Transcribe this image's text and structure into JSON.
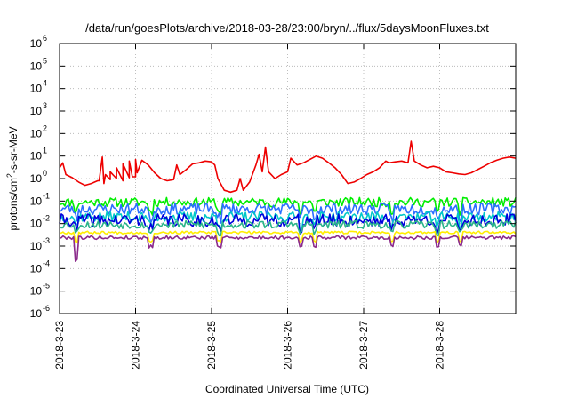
{
  "chart_data": {
    "type": "line",
    "title": "/data/run/goesPlots/archive/2018-03-28/23:00/bryn/../flux/5daysMoonFluxes.txt",
    "xlabel": "Coordinated Universal Time (UTC)",
    "ylabel": {
      "prefix": "protons/cm",
      "superscript": "2",
      "suffix": "-s-sr-MeV"
    },
    "y_scale": "log",
    "ylim": [
      1e-06,
      1000000.0
    ],
    "y_ticks": [
      {
        "value": 1e-06,
        "base": "10",
        "exp": "-6"
      },
      {
        "value": 1e-05,
        "base": "10",
        "exp": "-5"
      },
      {
        "value": 0.0001,
        "base": "10",
        "exp": "-4"
      },
      {
        "value": 0.001,
        "base": "10",
        "exp": "-3"
      },
      {
        "value": 0.01,
        "base": "10",
        "exp": "-2"
      },
      {
        "value": 0.1,
        "base": "10",
        "exp": "-1"
      },
      {
        "value": 1,
        "base": "10",
        "exp": "0"
      },
      {
        "value": 10,
        "base": "10",
        "exp": "1"
      },
      {
        "value": 100,
        "base": "10",
        "exp": "2"
      },
      {
        "value": 1000,
        "base": "10",
        "exp": "3"
      },
      {
        "value": 10000,
        "base": "10",
        "exp": "4"
      },
      {
        "value": 100000,
        "base": "10",
        "exp": "5"
      },
      {
        "value": 1000000,
        "base": "10",
        "exp": "6"
      }
    ],
    "xlim": [
      "2018-03-23T00:00",
      "2018-03-29T00:00"
    ],
    "x_ticks": [
      {
        "value": "2018-03-23T00:00",
        "label": "2018-3-23"
      },
      {
        "value": "2018-03-24T00:00",
        "label": "2018-3-24"
      },
      {
        "value": "2018-03-25T00:00",
        "label": "2018-3-25"
      },
      {
        "value": "2018-03-26T00:00",
        "label": "2018-3-26"
      },
      {
        "value": "2018-03-27T00:00",
        "label": "2018-3-27"
      },
      {
        "value": "2018-03-28T00:00",
        "label": "2018-3-28"
      }
    ],
    "grid": true,
    "series": [
      {
        "color": "#ee0000",
        "points": [
          [
            "2018-03-23T00:00",
            3.0
          ],
          [
            "2018-03-23T01:00",
            5.0
          ],
          [
            "2018-03-23T02:00",
            1.5
          ],
          [
            "2018-03-23T04:00",
            1.1
          ],
          [
            "2018-03-23T06:00",
            0.7
          ],
          [
            "2018-03-23T08:00",
            0.5
          ],
          [
            "2018-03-23T10:00",
            0.6
          ],
          [
            "2018-03-23T12:00",
            0.8
          ],
          [
            "2018-03-23T14:00",
            0.6
          ],
          [
            "2018-03-23T16:00",
            0.9
          ],
          [
            "2018-03-23T18:00",
            1.0
          ],
          [
            "2018-03-23T20:00",
            0.8
          ],
          [
            "2018-03-23T22:00",
            1.1
          ],
          [
            "2018-03-24T00:00",
            1.2
          ],
          [
            "2018-03-23T23:00",
            1.2
          ],
          [
            "2018-03-24T00:30",
            1.8
          ],
          [
            "2018-03-23T12:30",
            0.8
          ],
          [
            "2018-03-23T13:30",
            9.0
          ],
          [
            "2018-03-23T14:30",
            1.5
          ],
          [
            "2018-03-23T16:00",
            2.0
          ],
          [
            "2018-03-23T18:00",
            3.0
          ],
          [
            "2018-03-23T20:00",
            4.5
          ],
          [
            "2018-03-23T22:00",
            6.0
          ],
          [
            "2018-03-24T00:00",
            7.0
          ],
          [
            "2018-03-24T02:00",
            6.5
          ],
          [
            "2018-03-24T04:00",
            4.0
          ],
          [
            "2018-03-24T06:00",
            1.8
          ],
          [
            "2018-03-24T08:00",
            1.0
          ],
          [
            "2018-03-24T10:00",
            0.8
          ],
          [
            "2018-03-24T12:00",
            0.9
          ],
          [
            "2018-03-24T13:00",
            4.0
          ],
          [
            "2018-03-24T14:00",
            1.5
          ],
          [
            "2018-03-24T16:00",
            2.5
          ],
          [
            "2018-03-24T18:00",
            4.5
          ],
          [
            "2018-03-24T20:00",
            5.0
          ],
          [
            "2018-03-24T22:00",
            6.0
          ],
          [
            "2018-03-25T00:00",
            5.5
          ],
          [
            "2018-03-25T01:00",
            4.0
          ],
          [
            "2018-03-25T02:00",
            1.0
          ],
          [
            "2018-03-25T04:00",
            0.3
          ],
          [
            "2018-03-25T06:00",
            0.25
          ],
          [
            "2018-03-25T08:00",
            0.3
          ],
          [
            "2018-03-25T09:00",
            1.0
          ],
          [
            "2018-03-25T10:00",
            0.3
          ],
          [
            "2018-03-25T12:00",
            0.7
          ],
          [
            "2018-03-25T14:00",
            4.0
          ],
          [
            "2018-03-25T15:00",
            12.0
          ],
          [
            "2018-03-25T16:00",
            2.0
          ],
          [
            "2018-03-25T17:00",
            25.0
          ],
          [
            "2018-03-25T18:00",
            2.0
          ],
          [
            "2018-03-25T20:00",
            1.0
          ],
          [
            "2018-03-25T22:00",
            1.5
          ],
          [
            "2018-03-26T00:00",
            2.0
          ],
          [
            "2018-03-26T01:00",
            8.0
          ],
          [
            "2018-03-26T03:00",
            4.0
          ],
          [
            "2018-03-26T05:00",
            5.0
          ],
          [
            "2018-03-26T07:00",
            7.0
          ],
          [
            "2018-03-26T09:00",
            10.0
          ],
          [
            "2018-03-26T11:00",
            8.0
          ],
          [
            "2018-03-26T13:00",
            5.0
          ],
          [
            "2018-03-26T15:00",
            3.0
          ],
          [
            "2018-03-26T17:00",
            1.5
          ],
          [
            "2018-03-26T19:00",
            0.6
          ],
          [
            "2018-03-26T21:00",
            0.7
          ],
          [
            "2018-03-26T23:00",
            1.0
          ],
          [
            "2018-03-27T01:00",
            1.5
          ],
          [
            "2018-03-27T03:00",
            2.0
          ],
          [
            "2018-03-27T05:00",
            3.0
          ],
          [
            "2018-03-27T07:00",
            6.0
          ],
          [
            "2018-03-27T08:00",
            5.0
          ],
          [
            "2018-03-27T10:00",
            5.5
          ],
          [
            "2018-03-27T12:00",
            6.0
          ],
          [
            "2018-03-27T14:00",
            5.0
          ],
          [
            "2018-03-27T15:00",
            45.0
          ],
          [
            "2018-03-27T16:00",
            6.0
          ],
          [
            "2018-03-27T18:00",
            4.0
          ],
          [
            "2018-03-27T20:00",
            3.0
          ],
          [
            "2018-03-27T22:00",
            3.5
          ],
          [
            "2018-03-28T00:00",
            3.0
          ],
          [
            "2018-03-28T02:00",
            2.0
          ],
          [
            "2018-03-28T04:00",
            1.8
          ],
          [
            "2018-03-28T06:00",
            1.6
          ],
          [
            "2018-03-28T08:00",
            1.5
          ],
          [
            "2018-03-28T10:00",
            1.8
          ],
          [
            "2018-03-28T12:00",
            2.5
          ],
          [
            "2018-03-28T14:00",
            3.5
          ],
          [
            "2018-03-28T16:00",
            5.0
          ],
          [
            "2018-03-28T18:00",
            6.5
          ],
          [
            "2018-03-28T20:00",
            8.0
          ],
          [
            "2018-03-28T22:00",
            9.0
          ],
          [
            "2018-03-29T00:00",
            8.0
          ]
        ]
      },
      {
        "color": "#00ee00",
        "base": 0.09,
        "amp": 1.6,
        "seed": 11
      },
      {
        "color": "#2a6fff",
        "base": 0.045,
        "amp": 1.8,
        "seed": 23
      },
      {
        "color": "#00c8c8",
        "base": 0.02,
        "amp": 1.7,
        "seed": 37
      },
      {
        "color": "#0000dd",
        "base": 0.014,
        "amp": 1.9,
        "seed": 41
      },
      {
        "color": "#2ab58a",
        "base": 0.009,
        "amp": 1.5,
        "seed": 53
      },
      {
        "color": "#ffee00",
        "base": 0.004,
        "amp": 1.15,
        "seed": 67
      },
      {
        "color": "#8b2a8b",
        "base": 0.0024,
        "amp": 1.2,
        "seed": 79
      }
    ]
  }
}
